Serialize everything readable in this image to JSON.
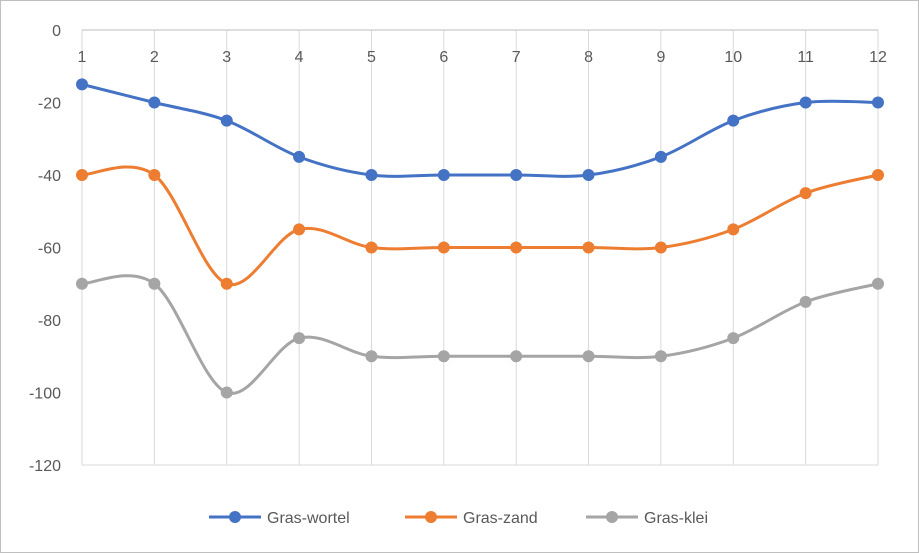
{
  "chart_data": {
    "type": "line",
    "smooth": true,
    "x": [
      1,
      2,
      3,
      4,
      5,
      6,
      7,
      8,
      9,
      10,
      11,
      12
    ],
    "series": [
      {
        "name": "Gras-wortel",
        "color": "#4472c4",
        "values": [
          -15,
          -20,
          -25,
          -35,
          -40,
          -40,
          -40,
          -40,
          -35,
          -25,
          -20,
          -20
        ]
      },
      {
        "name": "Gras-zand",
        "color": "#ed7d31",
        "values": [
          -40,
          -40,
          -70,
          -55,
          -60,
          -60,
          -60,
          -60,
          -60,
          -55,
          -45,
          -40
        ]
      },
      {
        "name": "Gras-klei",
        "color": "#a5a5a5",
        "values": [
          -70,
          -70,
          -100,
          -85,
          -90,
          -90,
          -90,
          -90,
          -90,
          -85,
          -75,
          -70
        ]
      }
    ],
    "y_ticks": [
      0,
      -20,
      -40,
      -60,
      -80,
      -100,
      -120
    ],
    "ylim": [
      -120,
      0
    ],
    "x_axis_position": "top",
    "grid": {
      "vertical": true,
      "horizontal": false
    },
    "legend_position": "bottom",
    "title": "",
    "xlabel": "",
    "ylabel": ""
  }
}
